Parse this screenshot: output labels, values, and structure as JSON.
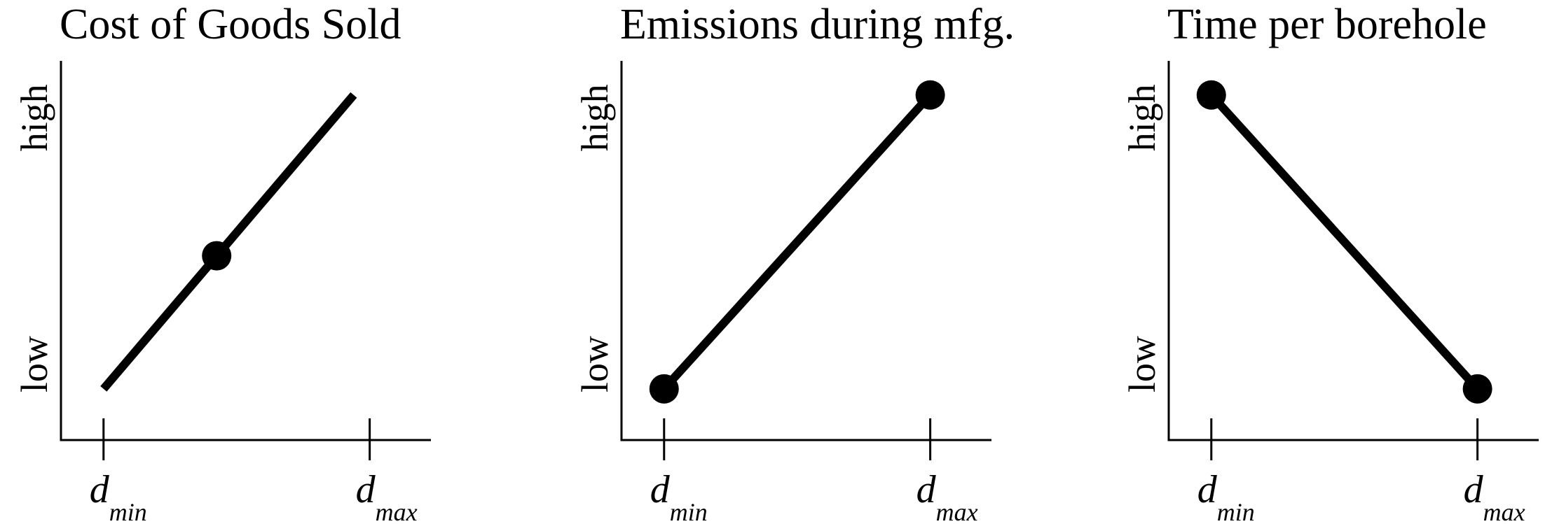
{
  "chart_data": [
    {
      "type": "line",
      "title": "Cost of Goods Sold",
      "color": "#000000",
      "xlim": [
        -0.16,
        1.23
      ],
      "ylim": [
        0,
        1
      ],
      "xticks": [
        {
          "value": 0,
          "label": "d",
          "subscript": "min"
        },
        {
          "value": 1,
          "label": "d",
          "subscript": "max"
        }
      ],
      "yticks": [
        {
          "value": 0.2,
          "label": "low"
        },
        {
          "value": 0.85,
          "label": "high"
        }
      ],
      "line": {
        "x": [
          0,
          0.94
        ],
        "values": [
          0.135,
          0.91
        ]
      },
      "points": {
        "x": [
          0.425
        ],
        "values": [
          0.486
        ]
      }
    },
    {
      "type": "line",
      "title": "Emissions during mfg.",
      "color": "#000000",
      "xlim": [
        -0.16,
        1.23
      ],
      "ylim": [
        0,
        1
      ],
      "xticks": [
        {
          "value": 0,
          "label": "d",
          "subscript": "min"
        },
        {
          "value": 1,
          "label": "d",
          "subscript": "max"
        }
      ],
      "yticks": [
        {
          "value": 0.2,
          "label": "low"
        },
        {
          "value": 0.85,
          "label": "high"
        }
      ],
      "line": {
        "x": [
          0,
          1
        ],
        "values": [
          0.135,
          0.91
        ]
      },
      "points": {
        "x": [
          0,
          1
        ],
        "values": [
          0.135,
          0.91
        ]
      }
    },
    {
      "type": "line",
      "title": "Time per borehole",
      "color": "#000000",
      "xlim": [
        -0.16,
        1.23
      ],
      "ylim": [
        0,
        1
      ],
      "xticks": [
        {
          "value": 0,
          "label": "d",
          "subscript": "min"
        },
        {
          "value": 1,
          "label": "d",
          "subscript": "max"
        }
      ],
      "yticks": [
        {
          "value": 0.2,
          "label": "low"
        },
        {
          "value": 0.85,
          "label": "high"
        }
      ],
      "line": {
        "x": [
          0,
          1
        ],
        "values": [
          0.91,
          0.135
        ]
      },
      "points": {
        "x": [
          0,
          1
        ],
        "values": [
          0.91,
          0.135
        ]
      }
    }
  ]
}
